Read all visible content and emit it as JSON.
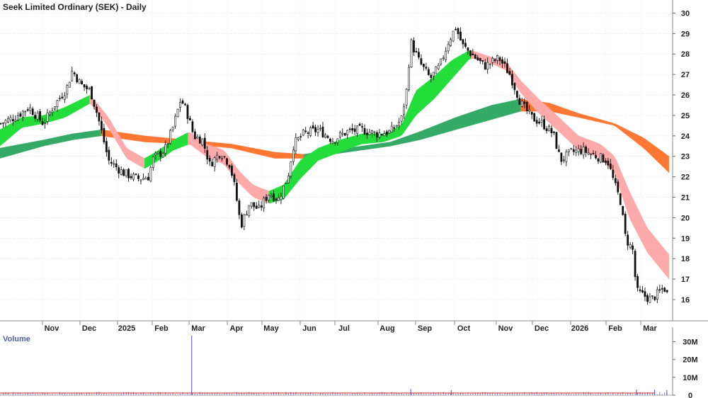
{
  "chart_data": {
    "type": "candlestick",
    "title": "Seek Limited Ordinary (SEK) - Daily",
    "price_axis": {
      "ylim": [
        15.1,
        30.5
      ],
      "ticks": [
        16,
        17,
        18,
        19,
        20,
        21,
        22,
        23,
        24,
        25,
        26,
        27,
        28,
        29,
        30
      ],
      "side": "right"
    },
    "x_labels": [
      "Nov",
      "Dec",
      "2025",
      "Feb",
      "Mar",
      "Apr",
      "May",
      "Jun",
      "Jul",
      "Aug",
      "Sep",
      "Oct",
      "Nov",
      "Dec",
      "2026",
      "Feb",
      "Mar"
    ],
    "approx_close_path": [
      {
        "t": 0,
        "v": 24.6
      },
      {
        "t": 20,
        "v": 24.9
      },
      {
        "t": 40,
        "v": 25.4
      },
      {
        "t": 60,
        "v": 24.6
      },
      {
        "t": 75,
        "v": 25.5
      },
      {
        "t": 92,
        "v": 26.3
      },
      {
        "t": 100,
        "v": 27.2
      },
      {
        "t": 112,
        "v": 26.5
      },
      {
        "t": 125,
        "v": 26.2
      },
      {
        "t": 135,
        "v": 25.0
      },
      {
        "t": 150,
        "v": 22.8
      },
      {
        "t": 170,
        "v": 22.2
      },
      {
        "t": 190,
        "v": 21.9
      },
      {
        "t": 205,
        "v": 22.0
      },
      {
        "t": 212,
        "v": 22.9
      },
      {
        "t": 228,
        "v": 23.3
      },
      {
        "t": 240,
        "v": 24.5
      },
      {
        "t": 250,
        "v": 25.8
      },
      {
        "t": 258,
        "v": 25.2
      },
      {
        "t": 268,
        "v": 24.0
      },
      {
        "t": 280,
        "v": 23.8
      },
      {
        "t": 290,
        "v": 22.6
      },
      {
        "t": 305,
        "v": 23.2
      },
      {
        "t": 318,
        "v": 22.6
      },
      {
        "t": 325,
        "v": 21.4
      },
      {
        "t": 333,
        "v": 19.6
      },
      {
        "t": 345,
        "v": 20.7
      },
      {
        "t": 358,
        "v": 20.4
      },
      {
        "t": 372,
        "v": 21.2
      },
      {
        "t": 385,
        "v": 20.9
      },
      {
        "t": 398,
        "v": 22.0
      },
      {
        "t": 406,
        "v": 23.6
      },
      {
        "t": 420,
        "v": 24.1
      },
      {
        "t": 440,
        "v": 24.3
      },
      {
        "t": 460,
        "v": 23.8
      },
      {
        "t": 480,
        "v": 24.2
      },
      {
        "t": 500,
        "v": 24.3
      },
      {
        "t": 520,
        "v": 24.1
      },
      {
        "t": 540,
        "v": 24.2
      },
      {
        "t": 555,
        "v": 24.8
      },
      {
        "t": 562,
        "v": 26.2
      },
      {
        "t": 568,
        "v": 28.6
      },
      {
        "t": 580,
        "v": 27.6
      },
      {
        "t": 595,
        "v": 26.8
      },
      {
        "t": 608,
        "v": 27.4
      },
      {
        "t": 620,
        "v": 28.6
      },
      {
        "t": 630,
        "v": 29.3
      },
      {
        "t": 640,
        "v": 28.4
      },
      {
        "t": 655,
        "v": 27.9
      },
      {
        "t": 670,
        "v": 27.4
      },
      {
        "t": 690,
        "v": 27.8
      },
      {
        "t": 705,
        "v": 27.0
      },
      {
        "t": 720,
        "v": 25.6
      },
      {
        "t": 735,
        "v": 24.9
      },
      {
        "t": 750,
        "v": 24.6
      },
      {
        "t": 765,
        "v": 24.1
      },
      {
        "t": 775,
        "v": 22.8
      },
      {
        "t": 790,
        "v": 23.2
      },
      {
        "t": 805,
        "v": 23.3
      },
      {
        "t": 825,
        "v": 23.0
      },
      {
        "t": 840,
        "v": 22.8
      },
      {
        "t": 850,
        "v": 21.6
      },
      {
        "t": 858,
        "v": 20.8
      },
      {
        "t": 865,
        "v": 19.0
      },
      {
        "t": 875,
        "v": 18.4
      },
      {
        "t": 880,
        "v": 16.4
      },
      {
        "t": 890,
        "v": 16.2
      },
      {
        "t": 900,
        "v": 16.0
      },
      {
        "t": 910,
        "v": 16.3
      },
      {
        "t": 918,
        "v": 16.6
      },
      {
        "t": 925,
        "v": 16.1
      }
    ],
    "series": [
      {
        "role": "short-term-ribbon",
        "top": [
          {
            "t": 0,
            "v": 24.3
          },
          {
            "t": 30,
            "v": 24.9
          },
          {
            "t": 60,
            "v": 25.0
          },
          {
            "t": 90,
            "v": 25.4
          },
          {
            "t": 125,
            "v": 26.0
          },
          {
            "t": 150,
            "v": 24.9
          },
          {
            "t": 175,
            "v": 23.4
          },
          {
            "t": 200,
            "v": 22.9
          },
          {
            "t": 215,
            "v": 23.2
          },
          {
            "t": 240,
            "v": 23.8
          },
          {
            "t": 262,
            "v": 24.2
          },
          {
            "t": 285,
            "v": 23.6
          },
          {
            "t": 310,
            "v": 23.3
          },
          {
            "t": 330,
            "v": 22.3
          },
          {
            "t": 350,
            "v": 21.6
          },
          {
            "t": 372,
            "v": 21.3
          },
          {
            "t": 392,
            "v": 21.6
          },
          {
            "t": 415,
            "v": 22.8
          },
          {
            "t": 440,
            "v": 23.4
          },
          {
            "t": 470,
            "v": 23.8
          },
          {
            "t": 500,
            "v": 24.1
          },
          {
            "t": 530,
            "v": 24.1
          },
          {
            "t": 555,
            "v": 24.5
          },
          {
            "t": 575,
            "v": 26.2
          },
          {
            "t": 600,
            "v": 26.9
          },
          {
            "t": 625,
            "v": 27.7
          },
          {
            "t": 650,
            "v": 28.2
          },
          {
            "t": 675,
            "v": 27.9
          },
          {
            "t": 700,
            "v": 27.6
          },
          {
            "t": 720,
            "v": 26.7
          },
          {
            "t": 745,
            "v": 25.8
          },
          {
            "t": 770,
            "v": 25.0
          },
          {
            "t": 800,
            "v": 24.0
          },
          {
            "t": 830,
            "v": 23.6
          },
          {
            "t": 850,
            "v": 23.0
          },
          {
            "t": 870,
            "v": 21.3
          },
          {
            "t": 895,
            "v": 19.5
          },
          {
            "t": 925,
            "v": 18.2
          }
        ],
        "bottom": [
          {
            "t": 0,
            "v": 23.5
          },
          {
            "t": 30,
            "v": 24.4
          },
          {
            "t": 60,
            "v": 24.6
          },
          {
            "t": 90,
            "v": 24.9
          },
          {
            "t": 125,
            "v": 25.6
          },
          {
            "t": 150,
            "v": 24.4
          },
          {
            "t": 175,
            "v": 22.9
          },
          {
            "t": 200,
            "v": 22.4
          },
          {
            "t": 215,
            "v": 22.7
          },
          {
            "t": 240,
            "v": 23.3
          },
          {
            "t": 262,
            "v": 23.6
          },
          {
            "t": 285,
            "v": 23.0
          },
          {
            "t": 310,
            "v": 22.6
          },
          {
            "t": 330,
            "v": 21.7
          },
          {
            "t": 350,
            "v": 21.0
          },
          {
            "t": 372,
            "v": 20.7
          },
          {
            "t": 392,
            "v": 20.9
          },
          {
            "t": 415,
            "v": 21.9
          },
          {
            "t": 440,
            "v": 22.8
          },
          {
            "t": 470,
            "v": 23.2
          },
          {
            "t": 500,
            "v": 23.6
          },
          {
            "t": 530,
            "v": 23.7
          },
          {
            "t": 555,
            "v": 24.0
          },
          {
            "t": 575,
            "v": 25.0
          },
          {
            "t": 600,
            "v": 25.8
          },
          {
            "t": 625,
            "v": 26.8
          },
          {
            "t": 650,
            "v": 27.8
          },
          {
            "t": 675,
            "v": 27.6
          },
          {
            "t": 700,
            "v": 27.2
          },
          {
            "t": 720,
            "v": 26.1
          },
          {
            "t": 745,
            "v": 25.1
          },
          {
            "t": 770,
            "v": 24.3
          },
          {
            "t": 800,
            "v": 23.3
          },
          {
            "t": 830,
            "v": 22.9
          },
          {
            "t": 850,
            "v": 22.2
          },
          {
            "t": 870,
            "v": 20.0
          },
          {
            "t": 895,
            "v": 18.3
          },
          {
            "t": 925,
            "v": 17.0
          }
        ]
      },
      {
        "role": "long-term-ribbon",
        "top": [
          {
            "t": 0,
            "v": 23.4
          },
          {
            "t": 60,
            "v": 23.8
          },
          {
            "t": 100,
            "v": 24.1
          },
          {
            "t": 140,
            "v": 24.3
          },
          {
            "t": 200,
            "v": 24.0
          },
          {
            "t": 260,
            "v": 23.8
          },
          {
            "t": 320,
            "v": 23.6
          },
          {
            "t": 380,
            "v": 23.2
          },
          {
            "t": 420,
            "v": 23.1
          },
          {
            "t": 480,
            "v": 23.4
          },
          {
            "t": 540,
            "v": 23.7
          },
          {
            "t": 580,
            "v": 24.2
          },
          {
            "t": 630,
            "v": 24.9
          },
          {
            "t": 680,
            "v": 25.5
          },
          {
            "t": 720,
            "v": 25.8
          },
          {
            "t": 760,
            "v": 25.6
          },
          {
            "t": 800,
            "v": 25.1
          },
          {
            "t": 850,
            "v": 24.6
          },
          {
            "t": 890,
            "v": 23.9
          },
          {
            "t": 925,
            "v": 23.0
          }
        ],
        "bottom": [
          {
            "t": 0,
            "v": 22.9
          },
          {
            "t": 60,
            "v": 23.5
          },
          {
            "t": 100,
            "v": 23.8
          },
          {
            "t": 140,
            "v": 24.0
          },
          {
            "t": 200,
            "v": 23.7
          },
          {
            "t": 260,
            "v": 23.6
          },
          {
            "t": 320,
            "v": 23.4
          },
          {
            "t": 380,
            "v": 22.9
          },
          {
            "t": 420,
            "v": 22.9
          },
          {
            "t": 480,
            "v": 23.2
          },
          {
            "t": 540,
            "v": 23.5
          },
          {
            "t": 580,
            "v": 23.8
          },
          {
            "t": 630,
            "v": 24.3
          },
          {
            "t": 680,
            "v": 24.8
          },
          {
            "t": 720,
            "v": 25.2
          },
          {
            "t": 760,
            "v": 25.2
          },
          {
            "t": 800,
            "v": 24.9
          },
          {
            "t": 850,
            "v": 24.5
          },
          {
            "t": 890,
            "v": 23.4
          },
          {
            "t": 925,
            "v": 22.2
          }
        ]
      }
    ],
    "volume": {
      "title": "Volume",
      "ylim": [
        0,
        35
      ],
      "ticks": [
        {
          "value": 0,
          "label": "0"
        },
        {
          "value": 10,
          "label": "10M"
        },
        {
          "value": 20,
          "label": "20M"
        },
        {
          "value": 30,
          "label": "30M"
        }
      ],
      "baseline_millions": 1.2,
      "spikes": [
        {
          "t": 265,
          "v": 33.5
        },
        {
          "t": 568,
          "v": 3.4
        },
        {
          "t": 624,
          "v": 2.8
        },
        {
          "t": 880,
          "v": 3.2
        },
        {
          "t": 905,
          "v": 3.0
        },
        {
          "t": 922,
          "v": 2.9
        }
      ]
    },
    "colors": {
      "short_up": "#22dd3a",
      "short_down": "#ffaaaa",
      "long_up": "#33aa66",
      "long_down": "#ee5555",
      "cross_up": "#ff7733",
      "candle": "#111111",
      "volume_bar": "#6666cc",
      "volume_line": "#cc2222",
      "grid": "#d8d8d8"
    },
    "grid": true
  }
}
